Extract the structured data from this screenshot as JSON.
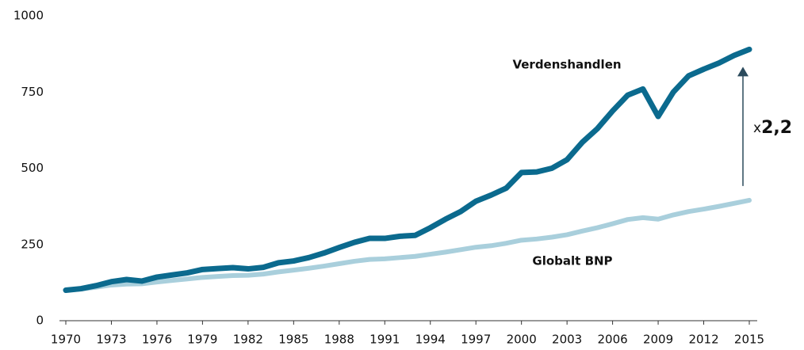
{
  "chart_data": {
    "type": "line",
    "x": [
      1970,
      1971,
      1972,
      1973,
      1974,
      1975,
      1976,
      1977,
      1978,
      1979,
      1980,
      1981,
      1982,
      1983,
      1984,
      1985,
      1986,
      1987,
      1988,
      1989,
      1990,
      1991,
      1992,
      1993,
      1994,
      1995,
      1996,
      1997,
      1998,
      1999,
      2000,
      2001,
      2002,
      2003,
      2004,
      2005,
      2006,
      2007,
      2008,
      2009,
      2010,
      2011,
      2012,
      2013,
      2014,
      2015
    ],
    "series": [
      {
        "name": "Verdenshandlen",
        "color": "#0b6a8e",
        "values": [
          100,
          105,
          115,
          128,
          135,
          130,
          143,
          150,
          157,
          168,
          171,
          174,
          170,
          175,
          190,
          196,
          207,
          222,
          240,
          257,
          270,
          270,
          277,
          280,
          305,
          333,
          358,
          392,
          412,
          435,
          486,
          488,
          500,
          528,
          585,
          630,
          688,
          740,
          760,
          670,
          750,
          803,
          825,
          845,
          870,
          890
        ]
      },
      {
        "name": "Globalt BNP",
        "color": "#a9cfdc",
        "values": [
          100,
          104,
          110,
          117,
          120,
          121,
          127,
          132,
          137,
          142,
          145,
          148,
          149,
          153,
          160,
          166,
          172,
          179,
          187,
          195,
          201,
          203,
          207,
          211,
          218,
          225,
          233,
          241,
          246,
          254,
          264,
          268,
          274,
          282,
          294,
          305,
          318,
          332,
          338,
          333,
          347,
          358,
          366,
          375,
          385,
          395
        ]
      }
    ],
    "xlim": [
      1970,
      2015
    ],
    "xticks": [
      1970,
      1973,
      1976,
      1979,
      1982,
      1985,
      1988,
      1991,
      1994,
      1997,
      2000,
      2003,
      2006,
      2009,
      2012,
      2015
    ],
    "ylim": [
      0,
      1000
    ],
    "yticks": [
      0,
      250,
      500,
      750,
      1000
    ],
    "grid": false,
    "annotation": {
      "prefix": "x",
      "text": "2,2"
    }
  }
}
